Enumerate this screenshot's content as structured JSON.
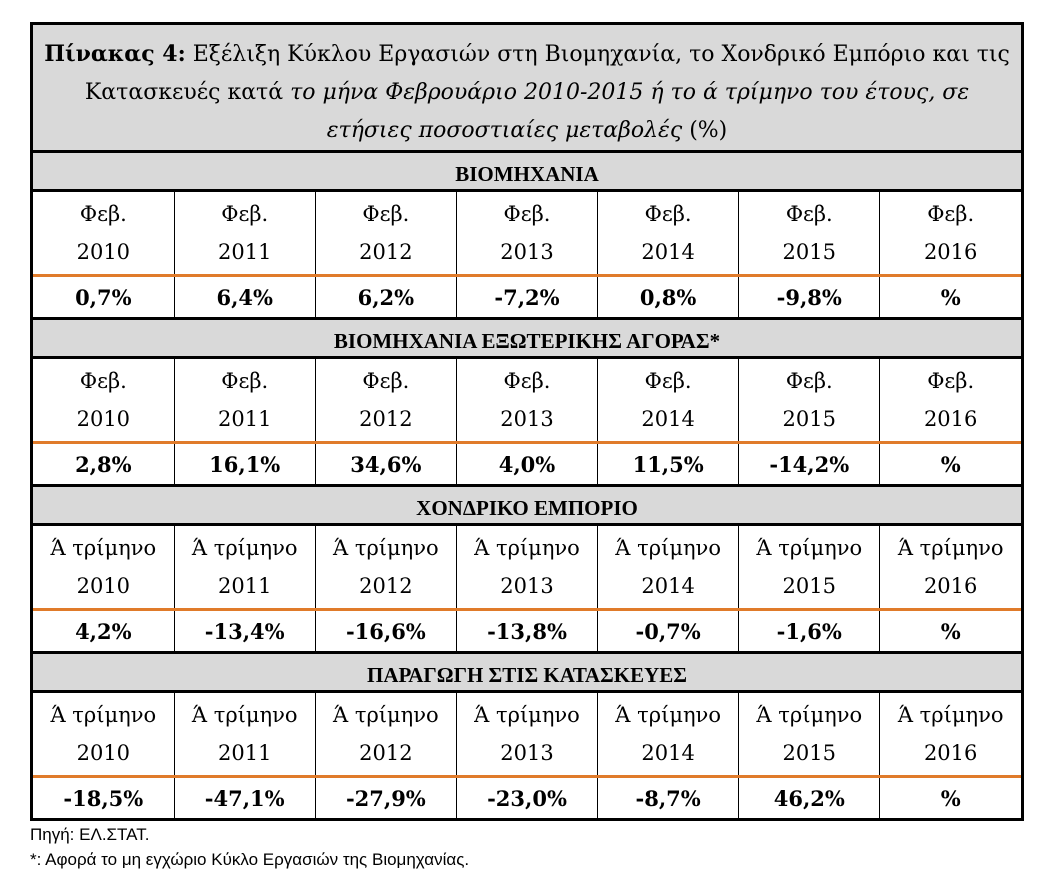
{
  "title": {
    "bold": "Πίνακας 4:",
    "regular": " Εξέλιξη Κύκλου Εργασιών στη Βιομηχανία, το Χονδρικό Εμπόριο και τις Κατασκευές κατά ",
    "italic": "το μήνα Φεβρουάριο 2010-2015  ή το ά τρίμηνο του έτους, σε ετήσιες ποσοστιαίες μεταβολές",
    "tail": " (%)"
  },
  "sections": [
    {
      "heading": "ΒΙΟΜΗΧΑΝΙΑ",
      "period": "Φεβ.",
      "years": [
        "2010",
        "2011",
        "2012",
        "2013",
        "2014",
        "2015",
        "2016"
      ],
      "values": [
        "0,7%",
        "6,4%",
        "6,2%",
        "-7,2%",
        "0,8%",
        "-9,8%",
        "%"
      ]
    },
    {
      "heading": "ΒΙΟΜΗΧΑΝΙΑ ΕΞΩΤΕΡΙΚΗΣ ΑΓΟΡΑΣ*",
      "period": "Φεβ.",
      "years": [
        "2010",
        "2011",
        "2012",
        "2013",
        "2014",
        "2015",
        "2016"
      ],
      "values": [
        "2,8%",
        "16,1%",
        "34,6%",
        "4,0%",
        "11,5%",
        "-14,2%",
        "%"
      ]
    },
    {
      "heading": "ΧΟΝΔΡΙΚΟ ΕΜΠΟΡΙΟ",
      "period": "Ά τρίμηνο",
      "years": [
        "2010",
        "2011",
        "2012",
        "2013",
        "2014",
        "2015",
        "2016"
      ],
      "values": [
        "4,2%",
        "-13,4%",
        "-16,6%",
        "-13,8%",
        "-0,7%",
        "-1,6%",
        "%"
      ]
    },
    {
      "heading": "ΠΑΡΑΓΩΓΗ ΣΤΙΣ ΚΑΤΑΣΚΕΥΕΣ",
      "period": "Ά τρίμηνο",
      "years": [
        "2010",
        "2011",
        "2012",
        "2013",
        "2014",
        "2015",
        "2016"
      ],
      "values": [
        "-18,5%",
        "-47,1%",
        "-27,9%",
        "-23,0%",
        "-8,7%",
        "46,2%",
        "%"
      ]
    }
  ],
  "notes": {
    "source": "Πηγή: ΕΛ.ΣΤΑΤ.",
    "footnote": "*: Αφορά το μη εγχώριο Κύκλο Εργασιών της Βιομηχανίας."
  },
  "colors": {
    "header_bg": "#d9d9d9",
    "divider_accent": "#e07b2a"
  }
}
